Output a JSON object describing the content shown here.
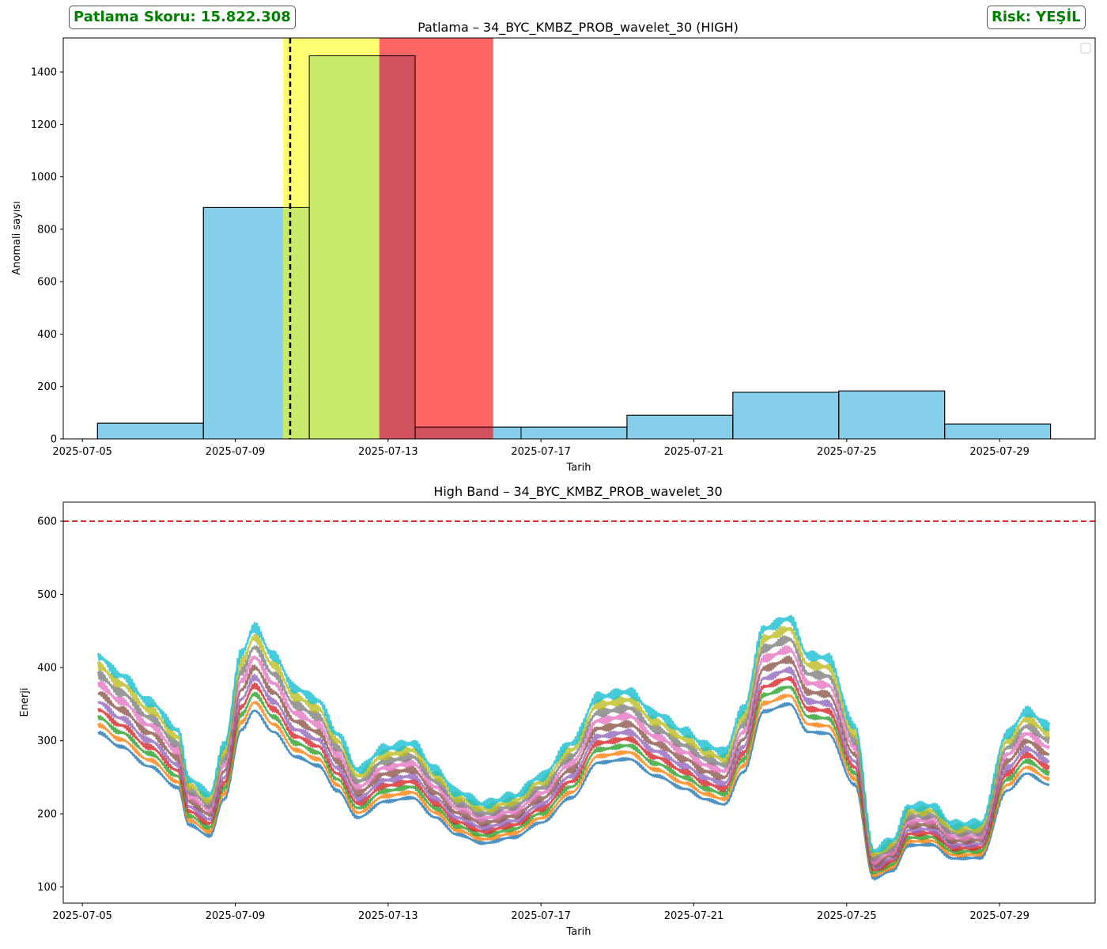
{
  "header": {
    "score_label": "Patlama Skoru: 15.822.308",
    "risk_label": "Risk: YEŞİL",
    "badge_color": "#008000"
  },
  "chart_data": [
    {
      "type": "bar",
      "title": "Patlama – 34_BYC_KMBZ_PROB_wavelet_30 (HIGH)",
      "xlabel": "Tarih",
      "ylabel": "Anomali sayısı",
      "x_type": "date",
      "xlim": [
        "2025-07-04T12:00",
        "2025-07-31T12:00"
      ],
      "ylim": [
        0,
        1530
      ],
      "xticks": [
        "2025-07-05",
        "2025-07-09",
        "2025-07-13",
        "2025-07-17",
        "2025-07-21",
        "2025-07-25",
        "2025-07-29"
      ],
      "yticks": [
        0,
        200,
        400,
        600,
        800,
        1000,
        1200,
        1400
      ],
      "bins": [
        {
          "start": "2025-07-05T09:30",
          "end": "2025-07-08T04:00",
          "value": 60
        },
        {
          "start": "2025-07-08T04:00",
          "end": "2025-07-10T22:30",
          "value": 883
        },
        {
          "start": "2025-07-10T22:30",
          "end": "2025-07-13T17:00",
          "value": 1462
        },
        {
          "start": "2025-07-13T17:00",
          "end": "2025-07-16T11:30",
          "value": 45
        },
        {
          "start": "2025-07-16T11:30",
          "end": "2025-07-19T06:00",
          "value": 45
        },
        {
          "start": "2025-07-19T06:00",
          "end": "2025-07-22T00:30",
          "value": 90
        },
        {
          "start": "2025-07-22T00:30",
          "end": "2025-07-24T19:00",
          "value": 178
        },
        {
          "start": "2025-07-24T19:00",
          "end": "2025-07-27T13:30",
          "value": 183
        },
        {
          "start": "2025-07-27T13:30",
          "end": "2025-07-30T08:00",
          "value": 57
        }
      ],
      "bar_color": "#87ceeb",
      "spans": [
        {
          "start": "2025-07-10T06:00",
          "end": "2025-07-12T18:30",
          "color": "#ffff00",
          "alpha": 0.55
        },
        {
          "start": "2025-07-12T18:30",
          "end": "2025-07-15T18:00",
          "color": "#ff0000",
          "alpha": 0.6
        }
      ],
      "vline": {
        "x": "2025-07-10T10:30",
        "color": "#000000",
        "style": "dashed"
      },
      "legend": "top-right",
      "grid": false
    },
    {
      "type": "line",
      "title": "High Band – 34_BYC_KMBZ_PROB_wavelet_30",
      "xlabel": "Tarih",
      "ylabel": "Enerji",
      "x_type": "date",
      "xlim": [
        "2025-07-04T12:00",
        "2025-07-31T12:00"
      ],
      "ylim": [
        78,
        626
      ],
      "xticks": [
        "2025-07-05",
        "2025-07-09",
        "2025-07-13",
        "2025-07-17",
        "2025-07-21",
        "2025-07-25",
        "2025-07-29"
      ],
      "yticks": [
        100,
        200,
        300,
        400,
        500,
        600
      ],
      "threshold": {
        "y": 600,
        "color": "#d62728",
        "style": "dashed"
      },
      "base_curve": {
        "x": [
          "2025-07-05T10:00",
          "2025-07-06T00:00",
          "2025-07-06T18:00",
          "2025-07-07T12:00",
          "2025-07-07T19:00",
          "2025-07-08T08:00",
          "2025-07-08T17:00",
          "2025-07-09T04:00",
          "2025-07-09T12:00",
          "2025-07-10T00:00",
          "2025-07-10T14:00",
          "2025-07-11T04:00",
          "2025-07-11T16:00",
          "2025-07-12T05:00",
          "2025-07-12T22:00",
          "2025-07-13T15:00",
          "2025-07-14T06:00",
          "2025-07-14T19:00",
          "2025-07-15T12:00",
          "2025-07-16T07:00",
          "2025-07-17T00:00",
          "2025-07-17T19:00",
          "2025-07-18T12:00",
          "2025-07-19T07:00",
          "2025-07-20T00:00",
          "2025-07-20T19:00",
          "2025-07-21T07:00",
          "2025-07-21T19:00",
          "2025-07-22T07:00",
          "2025-07-22T20:00",
          "2025-07-23T12:00",
          "2025-07-24T00:00",
          "2025-07-24T12:00",
          "2025-07-25T05:00",
          "2025-07-25T17:00",
          "2025-07-26T05:00",
          "2025-07-26T15:00",
          "2025-07-27T05:00",
          "2025-07-27T19:00",
          "2025-07-28T12:00",
          "2025-07-29T05:00",
          "2025-07-29T17:00",
          "2025-07-30T07:00"
        ],
        "y": [
          311,
          292,
          265,
          236,
          185,
          170,
          220,
          315,
          341,
          312,
          278,
          266,
          232,
          195,
          217,
          222,
          195,
          172,
          160,
          168,
          188,
          222,
          270,
          275,
          252,
          234,
          220,
          213,
          257,
          340,
          350,
          312,
          310,
          240,
          112,
          123,
          157,
          158,
          139,
          140,
          232,
          255,
          240
        ]
      },
      "series_offsets": [
        0,
        10,
        20,
        30,
        40,
        52,
        64,
        76,
        88,
        100
      ],
      "series_colors": [
        "#1f77b4",
        "#ff7f0e",
        "#2ca02c",
        "#d62728",
        "#9467bd",
        "#8c564b",
        "#e377c2",
        "#7f7f7f",
        "#bcbd22",
        "#17becf"
      ],
      "grid": false
    }
  ]
}
